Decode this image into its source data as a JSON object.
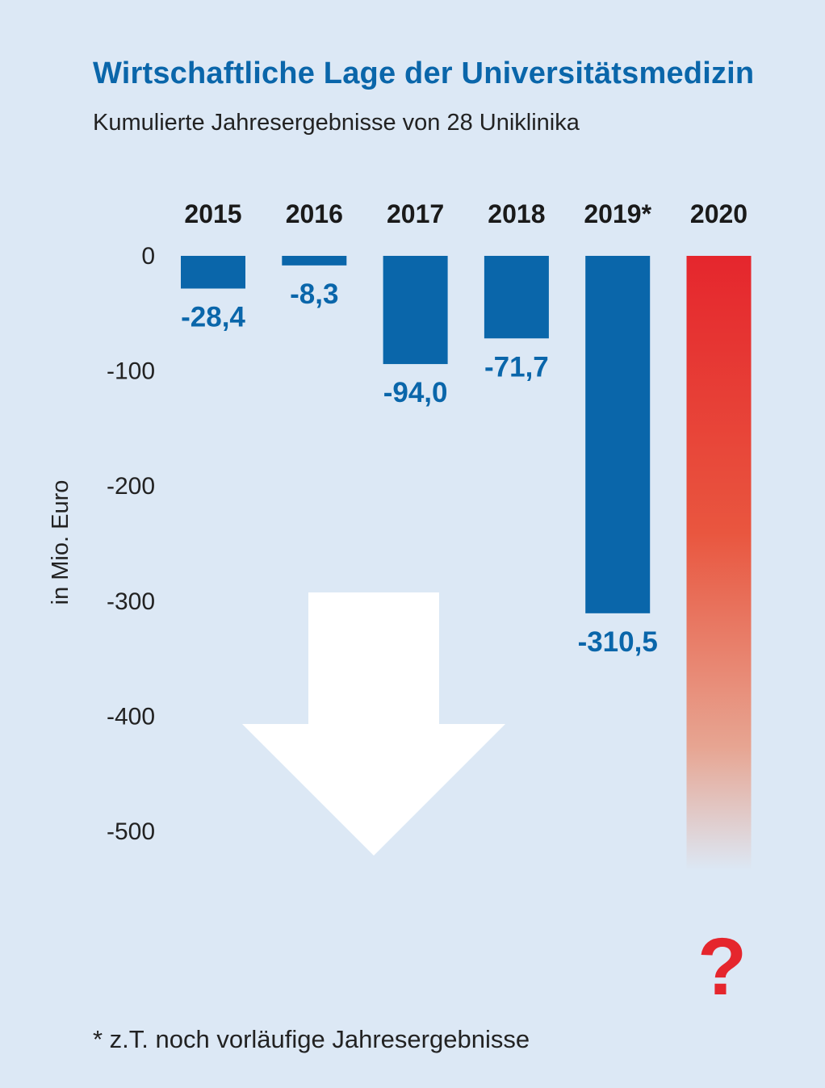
{
  "title": "Wirtschaftliche Lage der Universitätsmedizin",
  "subtitle": "Kumulierte Jahresergebnisse von 28 Uniklinika",
  "footnote": "* z.T. noch vorläufige Jahresergebnisse",
  "colors": {
    "background": "#dce8f5",
    "bar": "#0a66aa",
    "accent_red": "#e5262d",
    "arrow": "#ffffff"
  },
  "chart_data": {
    "type": "bar",
    "categories": [
      "2015",
      "2016",
      "2017",
      "2018",
      "2019*",
      "2020"
    ],
    "values": [
      -28.4,
      -8.3,
      -94.0,
      -71.7,
      -310.5,
      null
    ],
    "value_labels": [
      "-28,4",
      "-8,3",
      "-94,0",
      "-71,7",
      "-310,5",
      ""
    ],
    "unknown_value_marker": "?",
    "ylabel": "in Mio. Euro",
    "yticks": [
      0,
      -100,
      -200,
      -300,
      -400,
      -500
    ],
    "ytick_labels": [
      "0",
      "-100",
      "-200",
      "-300",
      "-400",
      "-500"
    ],
    "ylim": [
      -520,
      0
    ],
    "grid": false,
    "legend": "none"
  }
}
